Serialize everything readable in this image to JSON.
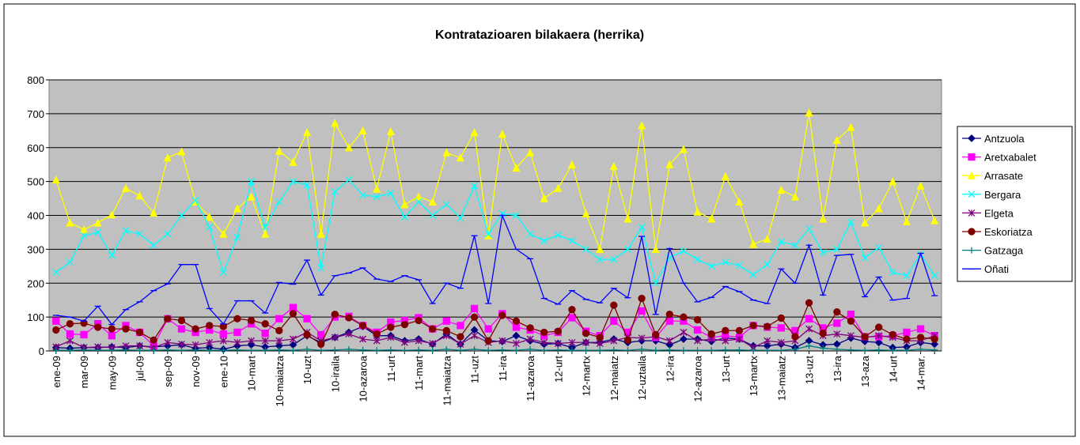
{
  "chart_data": {
    "type": "line",
    "title": "Kontratazioaren bilakaera (herrika)",
    "categories": [
      "ene-09",
      null,
      "mar-09",
      null,
      "may-09",
      null,
      "jul-09",
      null,
      "sep-09",
      null,
      "nov-09",
      null,
      "ene-10",
      null,
      "10-mart",
      null,
      "10-maiatza",
      null,
      "10-uzt",
      null,
      "10-iraila",
      null,
      "10-azaroa",
      null,
      "11-urt",
      null,
      "11-mart",
      null,
      "11-maiatza",
      null,
      "11-uzt",
      null,
      "11-ira",
      null,
      "11-azaroa",
      null,
      "12-urt",
      null,
      "12-martx",
      null,
      "12-maiatz",
      null,
      "12-uztaila",
      null,
      "12-ira",
      null,
      "12-azaroa",
      null,
      "13-urt",
      null,
      "13-martx",
      null,
      "13-maiatz",
      null,
      "13-uzt",
      null,
      "13-ira",
      null,
      "13-aza",
      null,
      "14-urt",
      null,
      "14-mar.",
      null
    ],
    "series": [
      {
        "name": "Antzuola",
        "color": "#000080",
        "marker": "diamond",
        "values": [
          10,
          8,
          10,
          10,
          12,
          10,
          15,
          12,
          15,
          18,
          8,
          10,
          5,
          15,
          18,
          12,
          15,
          18,
          45,
          25,
          40,
          55,
          72,
          45,
          45,
          30,
          35,
          20,
          50,
          20,
          62,
          30,
          28,
          45,
          30,
          20,
          22,
          10,
          25,
          25,
          35,
          25,
          30,
          30,
          18,
          35,
          35,
          28,
          38,
          35,
          15,
          15,
          20,
          10,
          30,
          18,
          20,
          38,
          28,
          25,
          10,
          12,
          25,
          20
        ]
      },
      {
        "name": "Aretxabalet",
        "color": "#ff00ff",
        "marker": "square",
        "values": [
          88,
          50,
          48,
          80,
          45,
          75,
          55,
          15,
          95,
          65,
          55,
          62,
          50,
          55,
          80,
          52,
          95,
          128,
          95,
          48,
          100,
          102,
          75,
          55,
          85,
          90,
          98,
          65,
          88,
          75,
          125,
          65,
          110,
          70,
          62,
          45,
          55,
          98,
          58,
          45,
          88,
          55,
          118,
          40,
          88,
          88,
          62,
          40,
          45,
          40,
          75,
          70,
          68,
          60,
          95,
          68,
          82,
          108,
          42,
          42,
          45,
          55,
          65,
          45
        ]
      },
      {
        "name": "Arrasate",
        "color": "#ffff00",
        "marker": "triangle",
        "values": [
          505,
          378,
          358,
          378,
          402,
          480,
          458,
          407,
          570,
          588,
          440,
          395,
          345,
          420,
          455,
          345,
          590,
          557,
          645,
          345,
          672,
          600,
          650,
          478,
          648,
          432,
          455,
          440,
          585,
          570,
          645,
          340,
          640,
          540,
          585,
          450,
          480,
          550,
          405,
          300,
          545,
          390,
          665,
          300,
          550,
          595,
          410,
          390,
          515,
          440,
          315,
          330,
          475,
          455,
          703,
          390,
          622,
          660,
          378,
          420,
          500,
          382,
          487,
          385
        ]
      },
      {
        "name": "Bergara",
        "color": "#00ffff",
        "marker": "x",
        "values": [
          232,
          262,
          340,
          350,
          282,
          355,
          345,
          312,
          345,
          400,
          445,
          365,
          232,
          335,
          500,
          365,
          440,
          500,
          490,
          245,
          470,
          505,
          460,
          455,
          465,
          395,
          440,
          400,
          432,
          392,
          487,
          345,
          405,
          400,
          345,
          325,
          342,
          325,
          300,
          270,
          270,
          300,
          365,
          200,
          275,
          295,
          270,
          250,
          262,
          252,
          225,
          255,
          322,
          312,
          360,
          290,
          300,
          380,
          275,
          305,
          232,
          222,
          285,
          222
        ]
      },
      {
        "name": "Elgeta",
        "color": "#800080",
        "marker": "star",
        "values": [
          12,
          30,
          10,
          12,
          10,
          15,
          15,
          10,
          25,
          20,
          18,
          25,
          30,
          25,
          30,
          30,
          30,
          35,
          55,
          30,
          40,
          50,
          35,
          30,
          40,
          25,
          30,
          22,
          45,
          20,
          45,
          25,
          30,
          22,
          35,
          25,
          22,
          25,
          25,
          22,
          30,
          40,
          38,
          42,
          30,
          55,
          30,
          35,
          30,
          35,
          10,
          30,
          25,
          30,
          65,
          45,
          50,
          45,
          40,
          45,
          40,
          30,
          30,
          45
        ]
      },
      {
        "name": "Eskoriatza",
        "color": "#800000",
        "marker": "circle",
        "values": [
          62,
          80,
          82,
          70,
          65,
          65,
          55,
          32,
          95,
          90,
          65,
          75,
          72,
          95,
          90,
          80,
          60,
          110,
          48,
          20,
          108,
          98,
          75,
          50,
          70,
          78,
          90,
          65,
          60,
          42,
          100,
          30,
          105,
          88,
          68,
          55,
          58,
          122,
          52,
          40,
          135,
          32,
          155,
          48,
          108,
          100,
          92,
          50,
          60,
          60,
          75,
          72,
          97,
          42,
          142,
          52,
          115,
          88,
          42,
          70,
          48,
          35,
          40,
          35
        ]
      },
      {
        "name": "Gatzaga",
        "color": "#008080",
        "marker": "plus",
        "values": [
          2,
          2,
          3,
          2,
          2,
          3,
          2,
          2,
          3,
          2,
          3,
          2,
          2,
          3,
          2,
          2,
          3,
          2,
          5,
          2,
          3,
          5,
          3,
          2,
          3,
          2,
          3,
          2,
          5,
          2,
          5,
          2,
          3,
          2,
          5,
          2,
          3,
          2,
          2,
          2,
          3,
          2,
          5,
          2,
          3,
          2,
          2,
          2,
          3,
          3,
          2,
          2,
          2,
          5,
          15,
          8,
          5,
          3,
          2,
          3,
          2,
          2,
          5,
          3
        ]
      },
      {
        "name": "Oñati",
        "color": "#0000ff",
        "marker": "dash",
        "values": [
          105,
          100,
          88,
          132,
          78,
          122,
          145,
          178,
          198,
          255,
          255,
          125,
          80,
          148,
          148,
          112,
          202,
          197,
          268,
          165,
          222,
          230,
          245,
          212,
          205,
          222,
          210,
          140,
          200,
          185,
          340,
          140,
          400,
          300,
          272,
          155,
          138,
          178,
          152,
          142,
          185,
          157,
          338,
          108,
          302,
          200,
          145,
          158,
          190,
          175,
          150,
          140,
          242,
          200,
          312,
          165,
          282,
          285,
          160,
          218,
          150,
          155,
          288,
          163
        ]
      }
    ],
    "ylim": [
      0,
      800
    ],
    "yticks": [
      0,
      100,
      200,
      300,
      400,
      500,
      600,
      700,
      800
    ],
    "grid": true,
    "plot_background": "#c0c0c0",
    "legend": "right"
  }
}
